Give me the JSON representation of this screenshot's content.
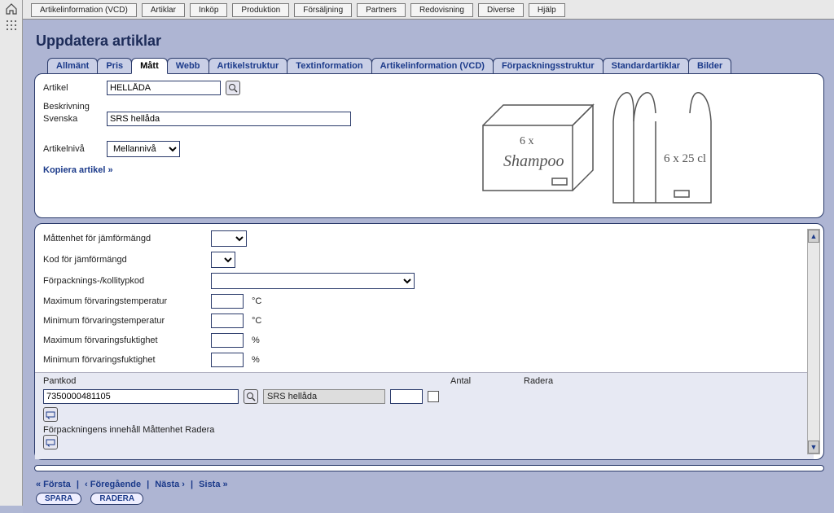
{
  "menubar": {
    "items": [
      "Artikelinformation (VCD)",
      "Artiklar",
      "Inköp",
      "Produktion",
      "Försäljning",
      "Partners",
      "Redovisning",
      "Diverse",
      "Hjälp"
    ]
  },
  "page_title": "Uppdatera artiklar",
  "tabs": [
    {
      "label": "Allmänt",
      "active": false
    },
    {
      "label": "Pris",
      "active": false
    },
    {
      "label": "Mått",
      "active": true
    },
    {
      "label": "Webb",
      "active": false
    },
    {
      "label": "Artikelstruktur",
      "active": false
    },
    {
      "label": "Textinformation",
      "active": false
    },
    {
      "label": "Artikelinformation (VCD)",
      "active": false
    },
    {
      "label": "Förpackningsstruktur",
      "active": false
    },
    {
      "label": "Standardartiklar",
      "active": false
    },
    {
      "label": "Bilder",
      "active": false
    }
  ],
  "article": {
    "label": "Artikel",
    "value": "HELLÅDA",
    "desc_label": "Beskrivning",
    "lang_label": "Svenska",
    "desc_value": "SRS hellåda",
    "level_label": "Artikelnivå",
    "level_value": "Mellannivå",
    "copy_link": "Kopiera artikel »"
  },
  "illustration": {
    "box_text1": "6 x",
    "box_text2": "Shampoo",
    "pack_text": "6 x 25 cl"
  },
  "fields": {
    "f1": "Måttenhet för jämförmängd",
    "f2": "Kod för jämförmängd",
    "f3": "Förpacknings-/kollitypkod",
    "f4": "Maximum förvaringstemperatur",
    "f5": "Minimum förvaringstemperatur",
    "f6": "Maximum förvaringsfuktighet",
    "f7": "Minimum förvaringsfuktighet",
    "unit_c": "°C",
    "unit_p": "%"
  },
  "pant": {
    "head_code": "Pantkod",
    "head_qty": "Antal",
    "head_del": "Radera",
    "code_value": "7350000481105",
    "desc_value": "SRS hellåda",
    "innehall_cols": "Förpackningens innehåll Måttenhet Radera"
  },
  "footer": {
    "first": "« Första",
    "prev": "‹ Föregående",
    "next": "Nästa ›",
    "last": "Sista »",
    "save": "SPARA",
    "delete": "RADERA"
  },
  "colors": {
    "bg": "#aeb5d3",
    "accent": "#1b3a8a",
    "border": "#2a3a6a"
  }
}
